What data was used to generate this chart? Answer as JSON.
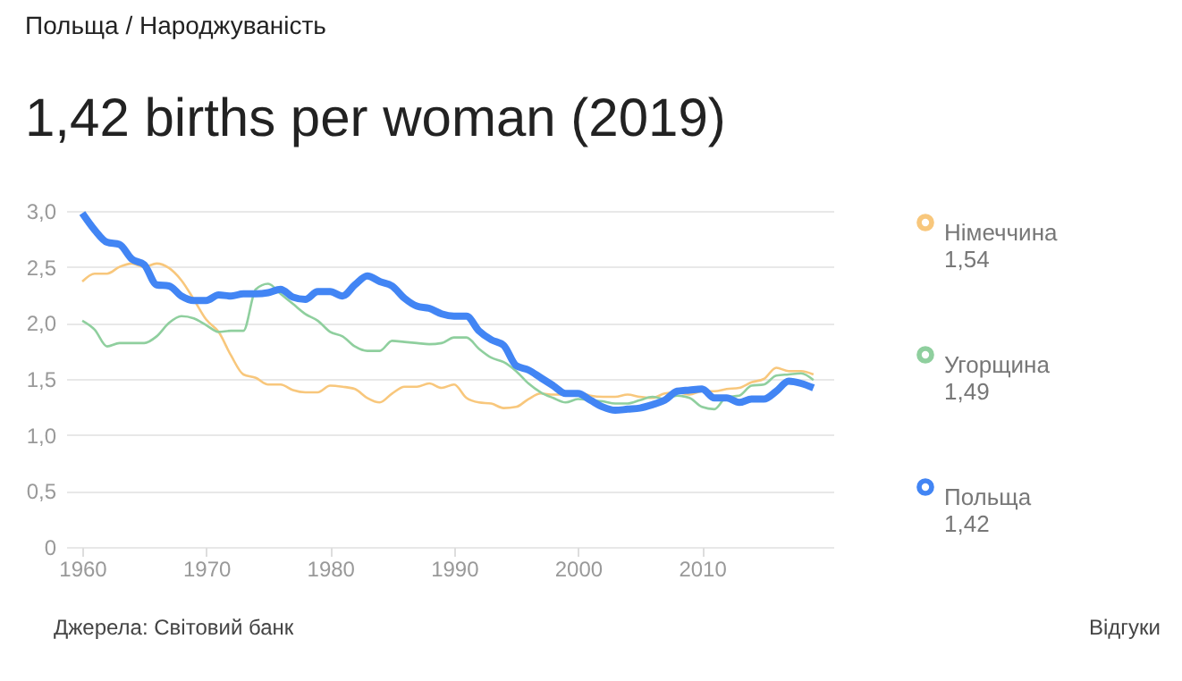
{
  "chart_data": {
    "type": "line",
    "subtitle": "Польща / Народжуваність",
    "title": "1,42 births per woman (2019)",
    "x": [
      1960,
      1961,
      1962,
      1963,
      1964,
      1965,
      1966,
      1967,
      1968,
      1969,
      1970,
      1971,
      1972,
      1973,
      1974,
      1975,
      1976,
      1977,
      1978,
      1979,
      1980,
      1981,
      1982,
      1983,
      1984,
      1985,
      1986,
      1987,
      1988,
      1989,
      1990,
      1991,
      1992,
      1993,
      1994,
      1995,
      1996,
      1997,
      1998,
      1999,
      2000,
      2001,
      2002,
      2003,
      2004,
      2005,
      2006,
      2007,
      2008,
      2009,
      2010,
      2011,
      2012,
      2013,
      2014,
      2015,
      2016,
      2017,
      2018,
      2019
    ],
    "series": [
      {
        "name": "Німеччина",
        "color": "#f8c77c",
        "values": [
          2.37,
          2.44,
          2.44,
          2.5,
          2.53,
          2.5,
          2.53,
          2.49,
          2.38,
          2.21,
          2.03,
          1.92,
          1.71,
          1.54,
          1.51,
          1.45,
          1.45,
          1.4,
          1.38,
          1.38,
          1.44,
          1.43,
          1.41,
          1.33,
          1.29,
          1.37,
          1.43,
          1.43,
          1.46,
          1.42,
          1.45,
          1.33,
          1.29,
          1.28,
          1.24,
          1.25,
          1.32,
          1.37,
          1.36,
          1.36,
          1.38,
          1.35,
          1.34,
          1.34,
          1.36,
          1.34,
          1.33,
          1.37,
          1.38,
          1.36,
          1.39,
          1.39,
          1.41,
          1.42,
          1.47,
          1.5,
          1.6,
          1.57,
          1.57,
          1.54
        ]
      },
      {
        "name": "Угорщина",
        "color": "#8fcf9e",
        "values": [
          2.02,
          1.94,
          1.79,
          1.82,
          1.82,
          1.82,
          1.88,
          2.0,
          2.06,
          2.04,
          1.98,
          1.92,
          1.93,
          1.93,
          2.3,
          2.35,
          2.26,
          2.17,
          2.08,
          2.02,
          1.92,
          1.88,
          1.79,
          1.75,
          1.75,
          1.84,
          1.83,
          1.82,
          1.81,
          1.82,
          1.87,
          1.87,
          1.77,
          1.69,
          1.65,
          1.57,
          1.46,
          1.38,
          1.33,
          1.29,
          1.32,
          1.31,
          1.3,
          1.28,
          1.28,
          1.31,
          1.34,
          1.32,
          1.35,
          1.33,
          1.25,
          1.23,
          1.34,
          1.35,
          1.44,
          1.45,
          1.53,
          1.54,
          1.55,
          1.49
        ]
      },
      {
        "name": "Польща",
        "color": "#4285f4",
        "values": [
          2.98,
          2.83,
          2.72,
          2.7,
          2.57,
          2.52,
          2.34,
          2.33,
          2.24,
          2.2,
          2.2,
          2.25,
          2.24,
          2.26,
          2.26,
          2.27,
          2.3,
          2.23,
          2.21,
          2.28,
          2.28,
          2.24,
          2.34,
          2.42,
          2.37,
          2.33,
          2.22,
          2.15,
          2.13,
          2.08,
          2.06,
          2.06,
          1.93,
          1.85,
          1.8,
          1.62,
          1.58,
          1.51,
          1.44,
          1.37,
          1.37,
          1.31,
          1.25,
          1.22,
          1.23,
          1.24,
          1.27,
          1.31,
          1.39,
          1.4,
          1.41,
          1.33,
          1.33,
          1.29,
          1.32,
          1.32,
          1.39,
          1.48,
          1.46,
          1.42
        ]
      }
    ],
    "annotations": [
      "1,54",
      "1,49",
      "1,42",
      "Джерела: Світовий банк",
      "Відгуки"
    ],
    "xlim": [
      1958.7,
      2020.6
    ],
    "xticks": [
      1960,
      1970,
      1980,
      1990,
      2000,
      2010
    ],
    "ylim": [
      0,
      3.0
    ],
    "yticks": [
      {
        "value": 0,
        "label": "0"
      },
      {
        "value": 0.5,
        "label": "0,5"
      },
      {
        "value": 1,
        "label": "1,0"
      },
      {
        "value": 1.5,
        "label": "1,5"
      },
      {
        "value": 2,
        "label": "2,0"
      },
      {
        "value": 2.5,
        "label": "2,5"
      },
      {
        "value": 3,
        "label": "3,0"
      }
    ],
    "grid": "y",
    "legend": "right"
  }
}
